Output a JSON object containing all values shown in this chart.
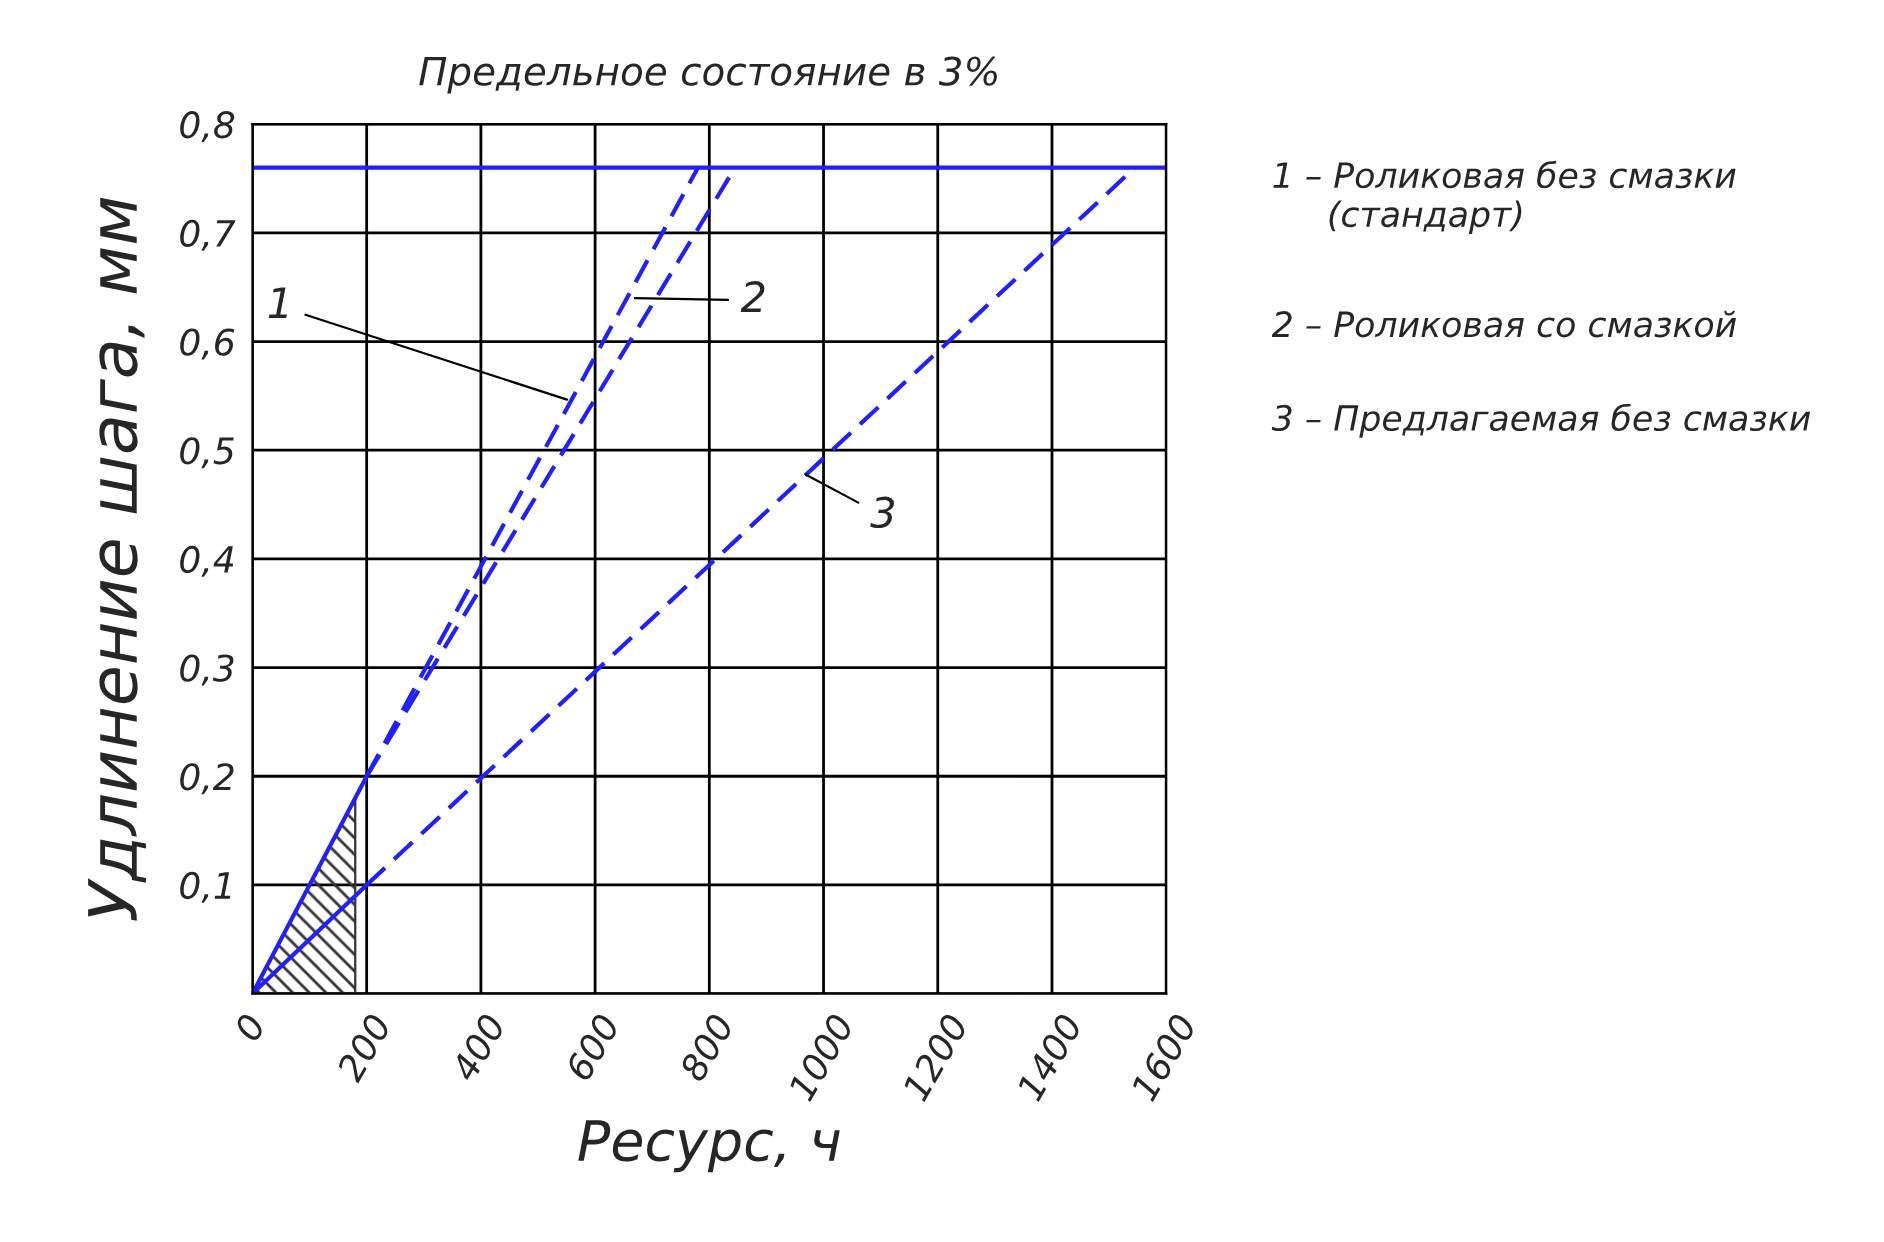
{
  "chart_data": {
    "type": "line",
    "title": "Предельное состояние в 3%",
    "xlabel": "Ресурс, ч",
    "ylabel": "Удлинение шага, мм",
    "series": [
      {
        "color": "#1f1fff",
        "line_style": "solid",
        "x": [
          0,
          200
        ],
        "values": [
          0,
          0.2
        ]
      },
      {
        "color": "#1f1fff",
        "line_style": "solid",
        "x": [
          0,
          200
        ],
        "values": [
          0,
          0.1
        ]
      },
      {
        "color": "#1f1fff",
        "line_style": "dashed",
        "x": [
          200,
          780
        ],
        "values": [
          0.2,
          0.76
        ]
      },
      {
        "color": "#1f1fff",
        "line_style": "dashed",
        "x": [
          200,
          845
        ],
        "values": [
          0.2,
          0.76
        ]
      },
      {
        "color": "#1f1fff",
        "line_style": "dashed",
        "x": [
          200,
          1545
        ],
        "values": [
          0.1,
          0.76
        ]
      }
    ],
    "ref_lines": [
      {
        "axis": "y",
        "value": 0.76,
        "color": "#1f1fff",
        "line_style": "solid"
      }
    ],
    "annotations": [
      {
        "text": "1",
        "x": 560,
        "y": 0.545
      },
      {
        "text": "2",
        "x": 660,
        "y": 0.64
      },
      {
        "text": "3",
        "x": 960,
        "y": 0.48
      },
      "1 – Роликовая без смазки\n     (стандарт)",
      "2 – Роликовая со смазкой",
      "3 – Предлагаемая без смазки"
    ],
    "xlim": [
      0,
      1600
    ],
    "ylim": [
      0,
      0.8
    ],
    "xticks": [
      {
        "value": 0,
        "label": "0"
      },
      200,
      400,
      600,
      800,
      1000,
      1200,
      1400,
      1600
    ],
    "yticks": [
      {
        "value": 0,
        "label": null
      },
      {
        "value": 0.1,
        "label": "0,1"
      },
      {
        "value": 0.2,
        "label": "0,2"
      },
      {
        "value": 0.3,
        "label": "0,3"
      },
      {
        "value": 0.4,
        "label": "0,4"
      },
      {
        "value": 0.5,
        "label": "0,5"
      },
      {
        "value": 0.6,
        "label": "0,6"
      },
      {
        "value": 0.7,
        "label": "0,7"
      },
      {
        "value": 0.8,
        "label": "0,8"
      }
    ],
    "grid": true,
    "marker": "none",
    "legend": false
  }
}
